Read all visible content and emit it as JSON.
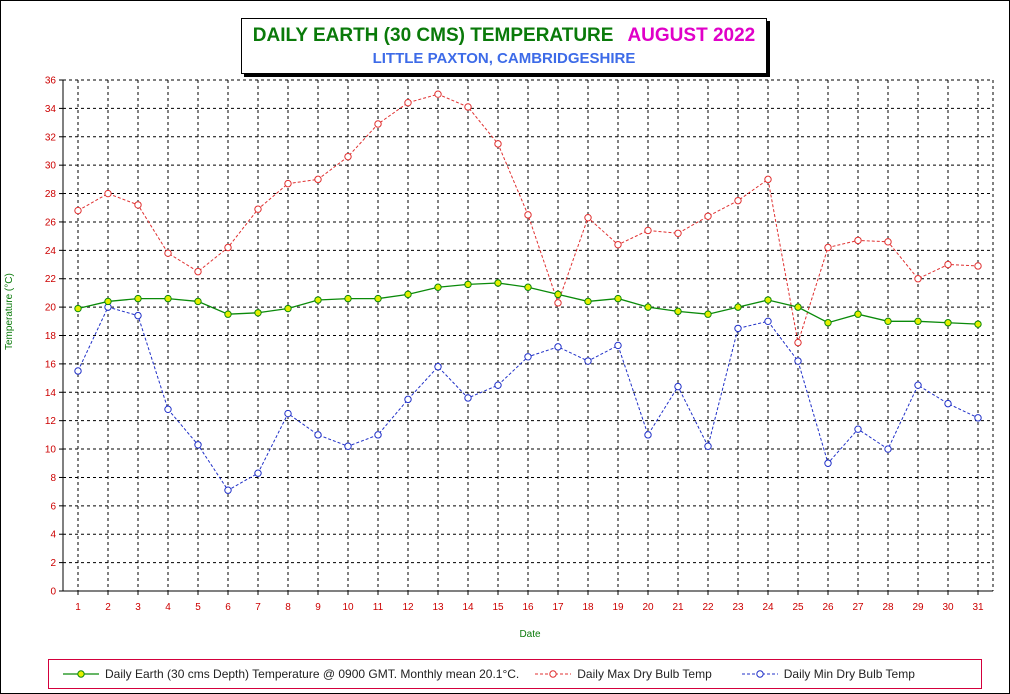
{
  "title": {
    "main": "DAILY EARTH (30 CMS) TEMPERATURE",
    "month": "AUGUST 2022",
    "subtitle": "LITTLE PAXTON, CAMBRIDGESHIRE"
  },
  "colors": {
    "earth": "#0a8a0a",
    "earth_marker": "#e6f000",
    "max": "#e03030",
    "min": "#2030c8",
    "grid": "#000000",
    "tick_text": "#cc0000",
    "label_text": "#0a7a0a"
  },
  "chart_data": {
    "type": "line",
    "title": "DAILY EARTH (30 CMS) TEMPERATURE AUGUST 2022",
    "subtitle": "LITTLE PAXTON, CAMBRIDGESHIRE",
    "xlabel": "Date",
    "ylabel": "Temperature (°C)",
    "x": [
      1,
      2,
      3,
      4,
      5,
      6,
      7,
      8,
      9,
      10,
      11,
      12,
      13,
      14,
      15,
      16,
      17,
      18,
      19,
      20,
      21,
      22,
      23,
      24,
      25,
      26,
      27,
      28,
      29,
      30,
      31
    ],
    "xlim": [
      0.5,
      31.5
    ],
    "ylim": [
      0,
      36
    ],
    "yticks": [
      0,
      2,
      4,
      6,
      8,
      10,
      12,
      14,
      16,
      18,
      20,
      22,
      24,
      26,
      28,
      30,
      32,
      34,
      36
    ],
    "grid": true,
    "legend_position": "bottom",
    "series": [
      {
        "name": "Daily Earth (30 cms Depth) Temperature @ 0900 GMT. Monthly mean 20.1°C.",
        "style": "solid",
        "values": [
          19.9,
          20.4,
          20.6,
          20.6,
          20.4,
          19.5,
          19.6,
          19.9,
          20.5,
          20.6,
          20.6,
          20.9,
          21.4,
          21.6,
          21.7,
          21.4,
          20.9,
          20.4,
          20.6,
          20.0,
          19.7,
          19.5,
          20.0,
          20.5,
          20.0,
          18.9,
          19.5,
          19.0,
          19.0,
          18.9,
          18.8
        ]
      },
      {
        "name": "Daily Max Dry Bulb Temp",
        "style": "dashed",
        "values": [
          26.8,
          28.0,
          27.2,
          23.8,
          22.5,
          24.2,
          26.9,
          28.7,
          29.0,
          30.6,
          32.9,
          34.4,
          35.0,
          34.1,
          31.5,
          26.5,
          20.3,
          26.3,
          24.4,
          25.4,
          25.2,
          26.4,
          27.5,
          29.0,
          17.5,
          24.2,
          24.7,
          24.6,
          22.0,
          23.0,
          22.9
        ]
      },
      {
        "name": "Daily Min Dry Bulb Temp",
        "style": "dashed",
        "values": [
          15.5,
          20.0,
          19.4,
          12.8,
          10.3,
          7.1,
          8.3,
          12.5,
          11.0,
          10.2,
          11.0,
          13.5,
          15.8,
          13.6,
          14.5,
          16.5,
          17.2,
          16.2,
          17.3,
          11.0,
          14.4,
          10.2,
          18.5,
          19.0,
          16.2,
          9.0,
          11.4,
          10.0,
          14.5,
          13.2,
          12.2
        ]
      }
    ]
  }
}
